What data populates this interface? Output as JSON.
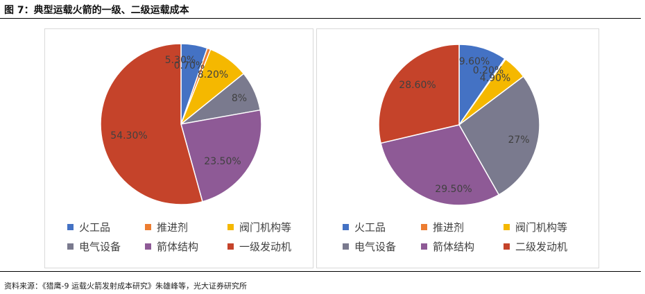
{
  "figure": {
    "title": "图 7：典型运载火箭的一级、二级运载成本",
    "source": "资料来源：《猎鹰-9 运载火箭发射成本研究》朱雄峰等，光大证券研究所"
  },
  "colors": {
    "火工品": "#4472C4",
    "推进剂": "#ED7D31",
    "阀门机构等": "#F5B800",
    "电气设备": "#7A7A8E",
    "箭体结构": "#8E5A96",
    "发动机": "#C5432A"
  },
  "chart_data": [
    {
      "type": "pie",
      "slices": [
        {
          "label": "火工品",
          "value": 5.3,
          "text": "5.30%",
          "color_key": "火工品"
        },
        {
          "label": "推进剂",
          "value": 0.7,
          "text": "0.70%",
          "color_key": "推进剂"
        },
        {
          "label": "阀门机构等",
          "value": 8.2,
          "text": "8.20%",
          "color_key": "阀门机构等"
        },
        {
          "label": "电气设备",
          "value": 8,
          "text": "8%",
          "color_key": "电气设备"
        },
        {
          "label": "箭体结构",
          "value": 23.5,
          "text": "23.50%",
          "color_key": "箭体结构"
        },
        {
          "label": "一级发动机",
          "value": 54.3,
          "text": "54.30%",
          "color_key": "发动机"
        }
      ],
      "legend_placement": "bottom"
    },
    {
      "type": "pie",
      "slices": [
        {
          "label": "火工品",
          "value": 9.6,
          "text": "9.60%",
          "color_key": "火工品"
        },
        {
          "label": "推进剂",
          "value": 0.2,
          "text": "0.20%",
          "color_key": "推进剂"
        },
        {
          "label": "阀门机构等",
          "value": 4.9,
          "text": "4.90%",
          "color_key": "阀门机构等"
        },
        {
          "label": "电气设备",
          "value": 27,
          "text": "27%",
          "color_key": "电气设备"
        },
        {
          "label": "箭体结构",
          "value": 29.5,
          "text": "29.50%",
          "color_key": "箭体结构"
        },
        {
          "label": "二级发动机",
          "value": 28.6,
          "text": "28.60%",
          "color_key": "发动机"
        }
      ],
      "legend_placement": "bottom"
    }
  ]
}
